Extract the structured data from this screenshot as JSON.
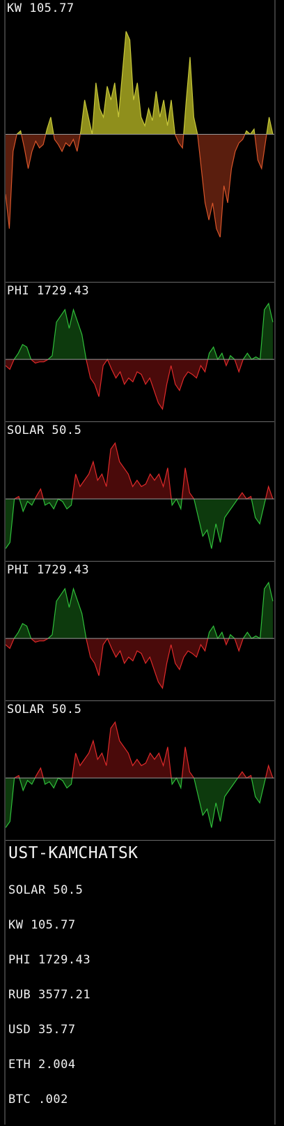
{
  "panels": [
    {
      "title": "KW 105.77",
      "positive_color": "#8f8f1c",
      "positive_stroke": "#c8c83a",
      "negative_color": "#5a1e0e",
      "negative_stroke": "#d8552a",
      "baseline_color": "#9a9a9a",
      "chart_data": {
        "type": "area",
        "baseline": 0,
        "ylim": [
          -60,
          62
        ],
        "values": [
          -35,
          -55,
          -10,
          0,
          2,
          -8,
          -20,
          -10,
          -4,
          -8,
          -6,
          3,
          10,
          -3,
          -6,
          -10,
          -5,
          -7,
          -3,
          -10,
          2,
          20,
          10,
          0,
          30,
          15,
          10,
          28,
          20,
          30,
          10,
          35,
          60,
          55,
          20,
          30,
          10,
          5,
          15,
          8,
          25,
          10,
          20,
          5,
          20,
          0,
          -5,
          -8,
          20,
          45,
          10,
          0,
          -20,
          -40,
          -50,
          -40,
          -55,
          -60,
          -30,
          -40,
          -20,
          -10,
          -5,
          -3,
          2,
          0,
          3,
          -15,
          -20,
          -5,
          10,
          0
        ]
      }
    },
    {
      "title": "PHI 1729.43",
      "positive_color": "#0d3a0d",
      "positive_stroke": "#2fbf3a",
      "negative_color": "#4a0a0a",
      "negative_stroke": "#e02a2a",
      "baseline_color": "#9a9a9a",
      "chart_data": {
        "type": "area",
        "baseline": 0,
        "ylim": [
          -42,
          45
        ],
        "values": [
          -5,
          -8,
          0,
          5,
          12,
          10,
          0,
          -3,
          -2,
          -2,
          0,
          3,
          30,
          35,
          40,
          25,
          40,
          30,
          20,
          0,
          -15,
          -20,
          -30,
          -5,
          0,
          -8,
          -15,
          -10,
          -20,
          -15,
          -18,
          -10,
          -12,
          -20,
          -15,
          -25,
          -35,
          -40,
          -20,
          -5,
          -20,
          -25,
          -15,
          -10,
          -12,
          -15,
          -5,
          -10,
          5,
          10,
          0,
          5,
          -5,
          3,
          0,
          -10,
          0,
          5,
          0,
          2,
          0,
          40,
          45,
          30
        ]
      }
    },
    {
      "title": "SOLAR 50.5",
      "positive_color": "#4a0a0a",
      "positive_stroke": "#e02a2a",
      "negative_color": "#0d3a0d",
      "negative_stroke": "#2fbf3a",
      "baseline_color": "#9a9a9a",
      "chart_data": {
        "type": "area",
        "baseline": 0,
        "ylim": [
          -42,
          45
        ],
        "values": [
          -40,
          -35,
          0,
          2,
          -10,
          -2,
          -5,
          2,
          8,
          -5,
          -3,
          -8,
          0,
          -2,
          -8,
          -5,
          20,
          10,
          15,
          20,
          30,
          15,
          20,
          10,
          40,
          45,
          30,
          25,
          20,
          10,
          15,
          10,
          12,
          20,
          15,
          20,
          10,
          25,
          -5,
          0,
          -8,
          25,
          5,
          0,
          -15,
          -30,
          -25,
          -40,
          -20,
          -35,
          -15,
          -10,
          -5,
          0,
          5,
          0,
          2,
          -15,
          -20,
          -5,
          10,
          0
        ]
      }
    },
    {
      "title": "PHI 1729.43",
      "positive_color": "#0d3a0d",
      "positive_stroke": "#2fbf3a",
      "negative_color": "#4a0a0a",
      "negative_stroke": "#e02a2a",
      "baseline_color": "#9a9a9a",
      "chart_data": {
        "type": "area",
        "baseline": 0,
        "ylim": [
          -42,
          45
        ],
        "values": [
          -5,
          -8,
          0,
          5,
          12,
          10,
          0,
          -3,
          -2,
          -2,
          0,
          3,
          30,
          35,
          40,
          25,
          40,
          30,
          20,
          0,
          -15,
          -20,
          -30,
          -5,
          0,
          -8,
          -15,
          -10,
          -20,
          -15,
          -18,
          -10,
          -12,
          -20,
          -15,
          -25,
          -35,
          -40,
          -20,
          -5,
          -20,
          -25,
          -15,
          -10,
          -12,
          -15,
          -5,
          -10,
          5,
          10,
          0,
          5,
          -5,
          3,
          0,
          -10,
          0,
          5,
          0,
          2,
          0,
          40,
          45,
          30
        ]
      }
    },
    {
      "title": "SOLAR 50.5",
      "positive_color": "#4a0a0a",
      "positive_stroke": "#e02a2a",
      "negative_color": "#0d3a0d",
      "negative_stroke": "#2fbf3a",
      "baseline_color": "#9a9a9a",
      "chart_data": {
        "type": "area",
        "baseline": 0,
        "ylim": [
          -42,
          45
        ],
        "values": [
          -40,
          -35,
          0,
          2,
          -10,
          -2,
          -5,
          2,
          8,
          -5,
          -3,
          -8,
          0,
          -2,
          -8,
          -5,
          20,
          10,
          15,
          20,
          30,
          15,
          20,
          10,
          40,
          45,
          30,
          25,
          20,
          10,
          15,
          10,
          12,
          20,
          15,
          20,
          10,
          25,
          -5,
          0,
          -8,
          25,
          5,
          0,
          -15,
          -30,
          -25,
          -40,
          -20,
          -35,
          -15,
          -10,
          -5,
          0,
          5,
          0,
          2,
          -15,
          -20,
          -5,
          10,
          0
        ]
      }
    }
  ],
  "summary": {
    "city": "UST-KAMCHATSK",
    "rows": [
      "SOLAR 50.5",
      "KW 105.77",
      "PHI 1729.43",
      "RUB 3577.21",
      "USD 35.77",
      "ETH 2.004",
      "BTC .002"
    ]
  }
}
